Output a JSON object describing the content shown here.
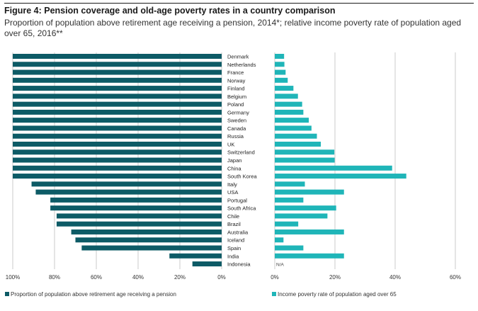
{
  "header": {
    "title": "Figure 4: Pension coverage and old-age poverty rates in a country comparison",
    "subtitle": "Proportion of population above retirement age receiving a pension, 2014*; relative income poverty rate of population aged over 65, 2016**"
  },
  "colors": {
    "coverage": "#0d5b66",
    "poverty": "#1fb5b8",
    "grid": "#b5b5b5"
  },
  "chart_data": {
    "type": "bar",
    "categories": [
      "Denmark",
      "Netherlands",
      "France",
      "Norway",
      "Finland",
      "Belgium",
      "Poland",
      "Germany",
      "Sweden",
      "Canada",
      "Russia",
      "UK",
      "Switzerland",
      "Japan",
      "China",
      "South Korea",
      "Italy",
      "USA",
      "Portugal",
      "South Africa",
      "Chile",
      "Brazil",
      "Australia",
      "Iceland",
      "Spain",
      "India",
      "Indonesia"
    ],
    "series": [
      {
        "name": "Proportion of population above retirement age receiving a pension",
        "values": [
          100,
          100,
          100,
          100,
          100,
          100,
          100,
          100,
          100,
          100,
          100,
          100,
          100,
          100,
          100,
          100,
          91,
          89,
          82,
          82,
          79,
          79,
          72,
          70,
          67,
          25,
          14
        ],
        "xlim": [
          100,
          0
        ],
        "ticks": [
          "100%",
          "80%",
          "60%",
          "40%",
          "20%",
          "0%"
        ]
      },
      {
        "name": "Income poverty rate of population aged over 65",
        "values": [
          3.1,
          3.2,
          3.6,
          4.3,
          6.2,
          7.7,
          9.1,
          9.5,
          11.3,
          12.2,
          14.0,
          15.3,
          19.8,
          19.9,
          39.0,
          43.7,
          10.0,
          23.0,
          9.5,
          20.4,
          17.5,
          7.8,
          23.0,
          2.9,
          9.5,
          23.0,
          null
        ],
        "missing_labels": [
          "",
          "",
          "",
          "",
          "",
          "",
          "",
          "",
          "",
          "",
          "",
          "",
          "",
          "",
          "",
          "",
          "",
          "",
          "",
          "",
          "",
          "",
          "",
          "",
          "",
          "",
          "N/A"
        ],
        "xlim": [
          0,
          60
        ],
        "ticks": [
          "0%",
          "20%",
          "40%",
          "60%"
        ]
      }
    ]
  }
}
